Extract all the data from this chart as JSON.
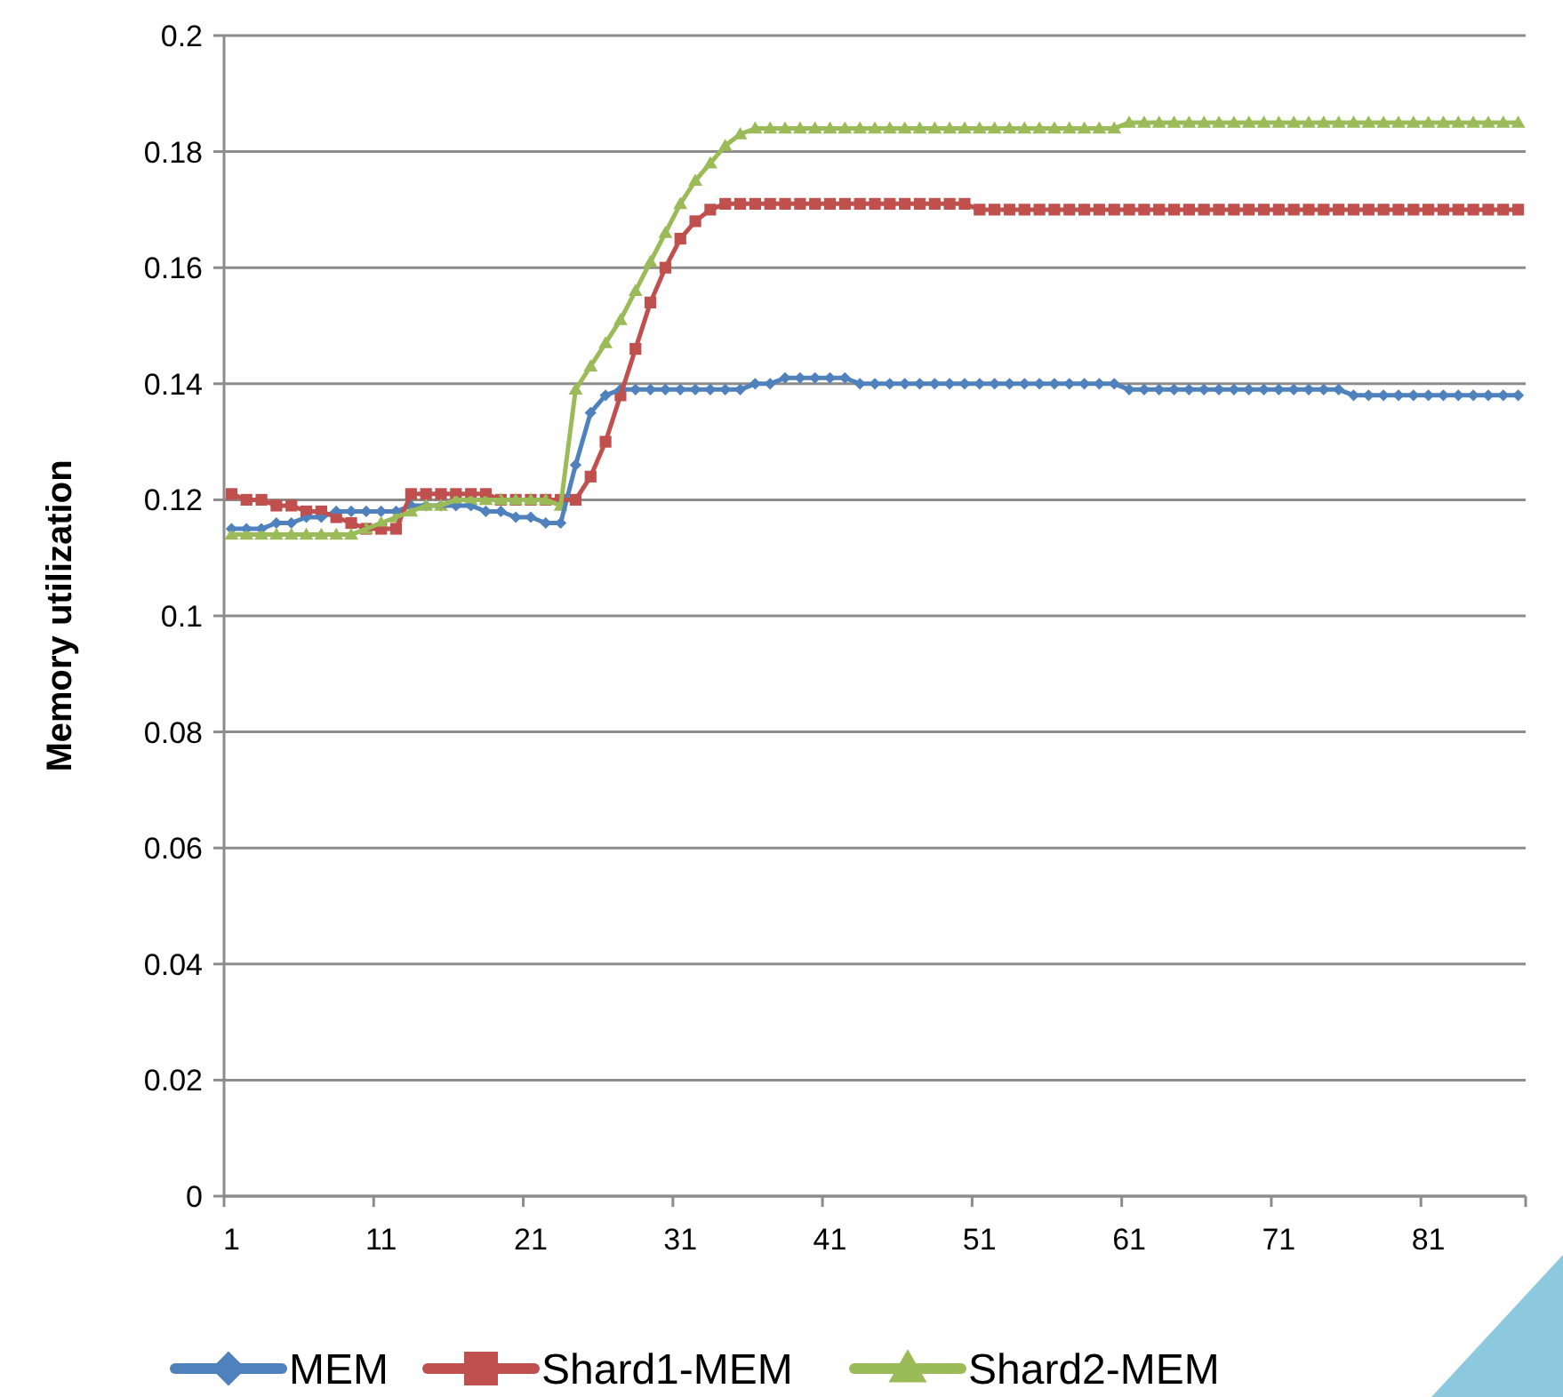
{
  "chart_data": {
    "type": "line",
    "ylabel": "Memory utilization",
    "categories": [
      "1",
      null,
      null,
      null,
      null,
      null,
      null,
      null,
      null,
      null,
      "11",
      null,
      null,
      null,
      null,
      null,
      null,
      null,
      null,
      null,
      "21",
      null,
      null,
      null,
      null,
      null,
      null,
      null,
      null,
      null,
      "31",
      null,
      null,
      null,
      null,
      null,
      null,
      null,
      null,
      null,
      "41",
      null,
      null,
      null,
      null,
      null,
      null,
      null,
      null,
      null,
      "51",
      null,
      null,
      null,
      null,
      null,
      null,
      null,
      null,
      null,
      "61",
      null,
      null,
      null,
      null,
      null,
      null,
      null,
      null,
      null,
      "71",
      null,
      null,
      null,
      null,
      null,
      null,
      null,
      null,
      null,
      "81",
      null,
      null,
      null,
      null,
      null,
      null
    ],
    "ylim": [
      0,
      0.2
    ],
    "yticks": [
      0,
      0.02,
      0.04,
      0.06,
      0.08,
      0.1,
      0.12,
      0.14,
      0.16,
      0.18,
      0.2
    ],
    "grid": "y",
    "legend": "bottom",
    "line_style": "solid",
    "series": [
      {
        "name": "MEM",
        "color": "#4f81bd",
        "marker": "diamond",
        "values": [
          0.115,
          0.115,
          0.115,
          0.116,
          0.116,
          0.117,
          0.117,
          0.118,
          0.118,
          0.118,
          0.118,
          0.118,
          0.119,
          0.119,
          0.119,
          0.119,
          0.119,
          0.118,
          0.118,
          0.117,
          0.117,
          0.116,
          0.116,
          0.126,
          0.135,
          0.138,
          0.139,
          0.139,
          0.139,
          0.139,
          0.139,
          0.139,
          0.139,
          0.139,
          0.139,
          0.14,
          0.14,
          0.141,
          0.141,
          0.141,
          0.141,
          0.141,
          0.14,
          0.14,
          0.14,
          0.14,
          0.14,
          0.14,
          0.14,
          0.14,
          0.14,
          0.14,
          0.14,
          0.14,
          0.14,
          0.14,
          0.14,
          0.14,
          0.14,
          0.14,
          0.139,
          0.139,
          0.139,
          0.139,
          0.139,
          0.139,
          0.139,
          0.139,
          0.139,
          0.139,
          0.139,
          0.139,
          0.139,
          0.139,
          0.139,
          0.138,
          0.138,
          0.138,
          0.138,
          0.138,
          0.138,
          0.138,
          0.138,
          0.138,
          0.138,
          0.138,
          0.138
        ]
      },
      {
        "name": "Shard1-MEM",
        "color": "#c0504d",
        "marker": "square",
        "values": [
          0.121,
          0.12,
          0.12,
          0.119,
          0.119,
          0.118,
          0.118,
          0.117,
          0.116,
          0.115,
          0.115,
          0.115,
          0.121,
          0.121,
          0.121,
          0.121,
          0.121,
          0.121,
          0.12,
          0.12,
          0.12,
          0.12,
          0.12,
          0.12,
          0.124,
          0.13,
          0.138,
          0.146,
          0.154,
          0.16,
          0.165,
          0.168,
          0.17,
          0.171,
          0.171,
          0.171,
          0.171,
          0.171,
          0.171,
          0.171,
          0.171,
          0.171,
          0.171,
          0.171,
          0.171,
          0.171,
          0.171,
          0.171,
          0.171,
          0.171,
          0.17,
          0.17,
          0.17,
          0.17,
          0.17,
          0.17,
          0.17,
          0.17,
          0.17,
          0.17,
          0.17,
          0.17,
          0.17,
          0.17,
          0.17,
          0.17,
          0.17,
          0.17,
          0.17,
          0.17,
          0.17,
          0.17,
          0.17,
          0.17,
          0.17,
          0.17,
          0.17,
          0.17,
          0.17,
          0.17,
          0.17,
          0.17,
          0.17,
          0.17,
          0.17,
          0.17,
          0.17
        ]
      },
      {
        "name": "Shard2-MEM",
        "color": "#9bbb59",
        "marker": "triangle",
        "values": [
          0.114,
          0.114,
          0.114,
          0.114,
          0.114,
          0.114,
          0.114,
          0.114,
          0.114,
          0.115,
          0.116,
          0.117,
          0.118,
          0.119,
          0.119,
          0.12,
          0.12,
          0.12,
          0.12,
          0.12,
          0.12,
          0.12,
          0.119,
          0.139,
          0.143,
          0.147,
          0.151,
          0.156,
          0.161,
          0.166,
          0.171,
          0.175,
          0.178,
          0.181,
          0.183,
          0.184,
          0.184,
          0.184,
          0.184,
          0.184,
          0.184,
          0.184,
          0.184,
          0.184,
          0.184,
          0.184,
          0.184,
          0.184,
          0.184,
          0.184,
          0.184,
          0.184,
          0.184,
          0.184,
          0.184,
          0.184,
          0.184,
          0.184,
          0.184,
          0.184,
          0.185,
          0.185,
          0.185,
          0.185,
          0.185,
          0.185,
          0.185,
          0.185,
          0.185,
          0.185,
          0.185,
          0.185,
          0.185,
          0.185,
          0.185,
          0.185,
          0.185,
          0.185,
          0.185,
          0.185,
          0.185,
          0.185,
          0.185,
          0.185,
          0.185,
          0.185,
          0.185
        ]
      }
    ]
  }
}
